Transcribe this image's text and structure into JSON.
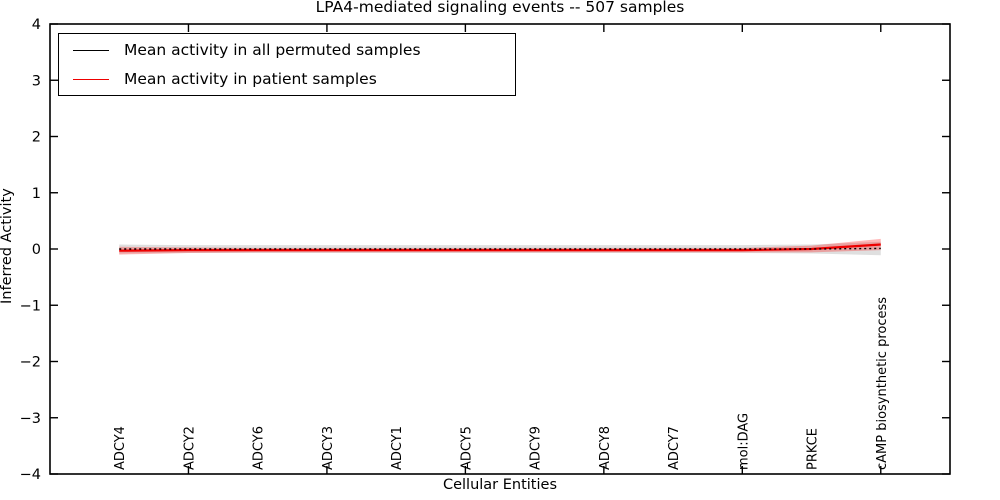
{
  "colors": {
    "permuted_line": "#000000",
    "patient_line": "#ee0000",
    "permuted_band_fill": "rgba(80,80,80,0.18)",
    "patient_band_fill": "rgba(255,20,20,0.30)",
    "axis": "#000000",
    "background": "#ffffff"
  },
  "chart_data": {
    "type": "line",
    "title": "LPA4-mediated signaling events -- 507 samples",
    "xlabel": "Cellular Entities",
    "ylabel": "Inferred Activity",
    "ylim": [
      -4,
      4
    ],
    "yticks": [
      4,
      3,
      2,
      1,
      0,
      -1,
      -2,
      -3,
      -4
    ],
    "ytick_labels": [
      "4",
      "3",
      "2",
      "1",
      "0",
      "−1",
      "−2",
      "−3",
      "−4"
    ],
    "xtick_every": 2,
    "grid": false,
    "legend_position": "upper left",
    "categories": [
      "ADCY4",
      "ADCY2",
      "ADCY6",
      "ADCY3",
      "ADCY1",
      "ADCY5",
      "ADCY9",
      "ADCY8",
      "ADCY7",
      "mol:DAG",
      "PRKCE",
      "cAMP biosynthetic process"
    ],
    "series": [
      {
        "name": "Mean activity in all permuted samples",
        "style": "dotted",
        "values": [
          0,
          0,
          0,
          0,
          0,
          0,
          0,
          0,
          0,
          0,
          0,
          0.01
        ],
        "band_halfwidth": [
          0.08,
          0.07,
          0.07,
          0.07,
          0.07,
          0.07,
          0.07,
          0.07,
          0.07,
          0.07,
          0.08,
          0.12
        ]
      },
      {
        "name": "Mean activity in patient samples",
        "style": "solid",
        "values": [
          -0.03,
          -0.02,
          -0.02,
          -0.02,
          -0.02,
          -0.02,
          -0.02,
          -0.02,
          -0.02,
          -0.02,
          0.0,
          0.08
        ],
        "band_halfwidth": [
          0.07,
          0.05,
          0.04,
          0.04,
          0.04,
          0.04,
          0.04,
          0.04,
          0.04,
          0.04,
          0.06,
          0.1
        ]
      }
    ]
  }
}
